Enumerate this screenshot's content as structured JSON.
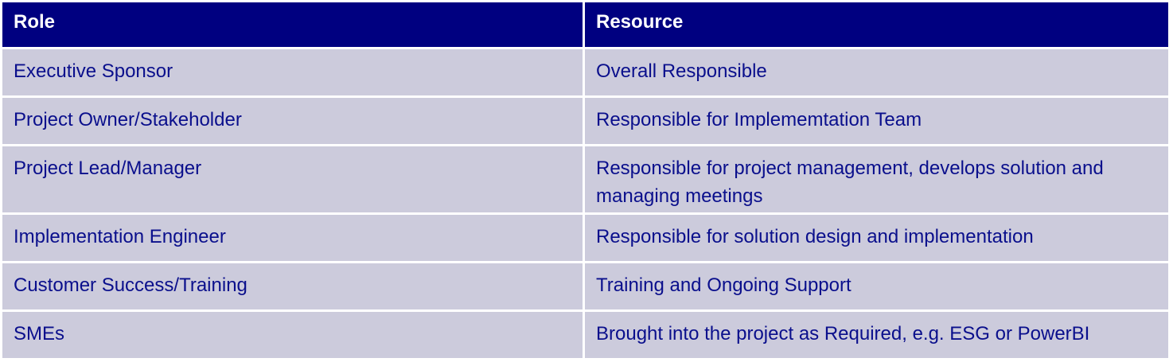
{
  "table": {
    "headers": [
      "Role",
      "Resource"
    ],
    "rows": [
      {
        "role": "Executive Sponsor",
        "resource": "Overall Responsible"
      },
      {
        "role": "Project Owner/Stakeholder",
        "resource": "Responsible for Implememtation Team"
      },
      {
        "role": "Project Lead/Manager",
        "resource": "Responsible for project management, develops solution and managing meetings"
      },
      {
        "role": "Implementation Engineer",
        "resource": "Responsible for solution design and implementation"
      },
      {
        "role": "Customer Success/Training",
        "resource": "Training and Ongoing Support"
      },
      {
        "role": "SMEs",
        "resource": "Brought into the project as Required, e.g. ESG or PowerBI"
      }
    ]
  },
  "colors": {
    "header_bg": "#000080",
    "row_bg": "#cccbdc",
    "text": "#0a0f8c"
  }
}
